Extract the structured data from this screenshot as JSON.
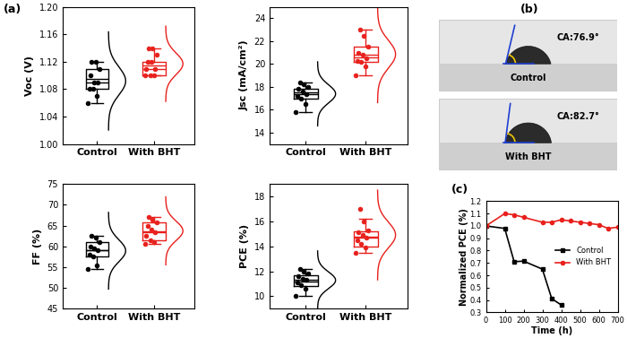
{
  "panel_labels": [
    "(a)",
    "(b)",
    "(c)"
  ],
  "chart_data": [
    {
      "type": "box",
      "ylabel": "Voc (V)",
      "categories": [
        "Control",
        "With BHT"
      ],
      "colors": [
        "#000000",
        "#e8201c"
      ],
      "ylim": [
        1.0,
        1.2
      ],
      "yticks": [
        {
          "value": 1.0,
          "label": "1.00"
        },
        1.04,
        1.08,
        1.12,
        1.16,
        {
          "value": 1.2,
          "label": "1.20"
        }
      ],
      "boxes": [
        {
          "whislo": 1.06,
          "q1": 1.08,
          "med": 1.09,
          "q3": 1.11,
          "whishi": 1.12,
          "mean": 1.095,
          "points": [
            1.06,
            1.07,
            1.08,
            1.08,
            1.09,
            1.09,
            1.1,
            1.11,
            1.12,
            1.12
          ]
        },
        {
          "whislo": 1.1,
          "q1": 1.1,
          "med": 1.11,
          "q3": 1.12,
          "whishi": 1.14,
          "mean": 1.115,
          "points": [
            1.1,
            1.1,
            1.1,
            1.11,
            1.11,
            1.12,
            1.12,
            1.13,
            1.14,
            1.14
          ]
        }
      ]
    },
    {
      "type": "box",
      "ylabel": "Jsc (mA/cm²)",
      "categories": [
        "Control",
        "With BHT"
      ],
      "colors": [
        "#000000",
        "#e8201c"
      ],
      "ylim": [
        13,
        25
      ],
      "yticks": [
        14,
        16,
        18,
        20,
        22,
        24
      ],
      "boxes": [
        {
          "whislo": 15.8,
          "q1": 17.0,
          "med": 17.5,
          "q3": 17.8,
          "whishi": 18.4,
          "mean": 17.4,
          "points": [
            15.8,
            16.5,
            17.0,
            17.2,
            17.4,
            17.6,
            17.8,
            18.0,
            18.2,
            18.4
          ]
        },
        {
          "whislo": 19.0,
          "q1": 20.2,
          "med": 20.6,
          "q3": 21.5,
          "whishi": 23.0,
          "mean": 20.8,
          "points": [
            19.0,
            19.8,
            20.2,
            20.3,
            20.5,
            20.8,
            21.0,
            21.5,
            22.5,
            23.0
          ]
        }
      ]
    },
    {
      "type": "box",
      "ylabel": "FF (%)",
      "categories": [
        "Control",
        "With BHT"
      ],
      "colors": [
        "#000000",
        "#e8201c"
      ],
      "ylim": [
        45,
        75
      ],
      "yticks": [
        45,
        50,
        55,
        60,
        65,
        70,
        75
      ],
      "boxes": [
        {
          "whislo": 54.5,
          "q1": 57.5,
          "med": 59.0,
          "q3": 61.0,
          "whishi": 62.5,
          "mean": 59.0,
          "points": [
            54.5,
            55.5,
            57.5,
            58.0,
            59.0,
            59.5,
            60.0,
            61.0,
            62.0,
            62.5
          ]
        },
        {
          "whislo": 60.5,
          "q1": 61.5,
          "med": 63.5,
          "q3": 65.8,
          "whishi": 67.0,
          "mean": 63.7,
          "points": [
            60.5,
            61.0,
            61.5,
            62.5,
            63.5,
            64.0,
            65.0,
            65.8,
            66.5,
            67.0
          ]
        }
      ]
    },
    {
      "type": "box",
      "ylabel": "PCE (%)",
      "categories": [
        "Control",
        "With BHT"
      ],
      "colors": [
        "#000000",
        "#e8201c"
      ],
      "ylim": [
        9,
        19
      ],
      "yticks": [
        10,
        12,
        14,
        16,
        18
      ],
      "boxes": [
        {
          "whislo": 10.0,
          "q1": 10.8,
          "med": 11.3,
          "q3": 11.7,
          "whishi": 12.2,
          "mean": 11.2,
          "points": [
            10.0,
            10.6,
            10.9,
            11.1,
            11.3,
            11.4,
            11.6,
            11.8,
            12.0,
            12.2
          ]
        },
        {
          "whislo": 13.5,
          "q1": 14.0,
          "med": 14.7,
          "q3": 15.2,
          "whishi": 16.2,
          "mean": 14.8,
          "points": [
            13.5,
            13.9,
            14.2,
            14.5,
            14.7,
            14.9,
            15.1,
            15.3,
            16.0,
            17.0
          ]
        }
      ]
    },
    {
      "type": "line",
      "xlabel": "Time (h)",
      "ylabel": "Normalized PCE (%)",
      "xlim": [
        0,
        700
      ],
      "xticks": [
        0,
        100,
        200,
        300,
        400,
        500,
        600,
        700
      ],
      "ylim": [
        0.3,
        1.2
      ],
      "yticks": [
        0.3,
        0.4,
        0.5,
        0.6,
        0.7,
        0.8,
        0.9,
        1.0,
        1.1,
        1.2
      ],
      "legend": "center right",
      "series": [
        {
          "name": "Control",
          "color": "#000000",
          "marker": "square",
          "x": [
            0,
            100,
            150,
            200,
            300,
            350,
            400
          ],
          "values": [
            1.0,
            0.98,
            0.71,
            0.715,
            0.65,
            0.41,
            0.36
          ]
        },
        {
          "name": "With BHT",
          "color": "#e8201c",
          "marker": "circle",
          "x": [
            0,
            100,
            150,
            200,
            300,
            350,
            400,
            450,
            500,
            550,
            600,
            650,
            700
          ],
          "values": [
            1.0,
            1.1,
            1.09,
            1.07,
            1.03,
            1.03,
            1.05,
            1.04,
            1.03,
            1.02,
            1.01,
            0.98,
            0.99
          ]
        }
      ]
    }
  ],
  "images": [
    {
      "label": "Control",
      "angle": 76.9,
      "annotation": "CA:76.9°"
    },
    {
      "label": "With BHT",
      "angle": 82.7,
      "annotation": "CA:82.7°"
    }
  ]
}
